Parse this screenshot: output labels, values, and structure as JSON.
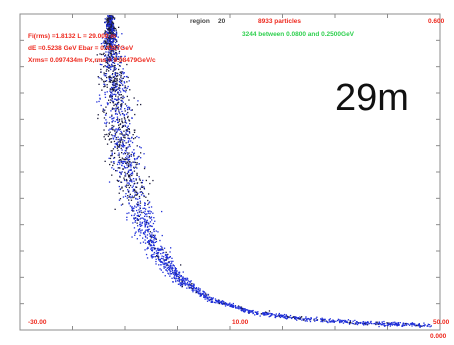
{
  "header": {
    "region_label": "region",
    "region_value": "20",
    "particles": "8933 particles",
    "between": "3244 between 0.0800 and 0.2500GeV",
    "top_right_value": "0.600"
  },
  "stats": {
    "line1": "Fi(rms) =1.8132    L = 29.000 m",
    "line2": "dE =0.5238 GeV    Ebar = 0.4357GeV",
    "line3": "Xrms= 0.097434m    Px,rms = 0.08479GeV/c"
  },
  "distance_label": "29m",
  "colors": {
    "axis_text": "#ee2a1f",
    "header_green": "#2fd04f",
    "frame": "#8c8c8c",
    "particles_blue": "#1f2fd8",
    "particles_dark": "#1b1b3a"
  },
  "chart_data": {
    "type": "scatter",
    "title": "",
    "xlabel": "",
    "ylabel": "",
    "xlim": [
      -30.0,
      50.0
    ],
    "ylim": [
      0.0,
      0.6
    ],
    "x_tick_labels": [
      "-30.00",
      "10.00",
      "50.00"
    ],
    "y_tick_labels": [
      "0.000",
      "0.600"
    ],
    "grid": false,
    "series": [
      {
        "color": "#1f2fd8",
        "description_points": [
          [
            -13.0,
            0.6
          ],
          [
            -12.8,
            0.55
          ],
          [
            -12.5,
            0.5
          ],
          [
            -12.0,
            0.44
          ],
          [
            -11.2,
            0.38
          ],
          [
            -10.0,
            0.32
          ],
          [
            -8.5,
            0.26
          ],
          [
            -6.5,
            0.2
          ],
          [
            -4.0,
            0.15
          ],
          [
            0.0,
            0.1
          ],
          [
            6.0,
            0.06
          ],
          [
            14.0,
            0.035
          ],
          [
            24.0,
            0.022
          ],
          [
            36.0,
            0.014
          ],
          [
            48.0,
            0.01
          ]
        ]
      }
    ]
  }
}
